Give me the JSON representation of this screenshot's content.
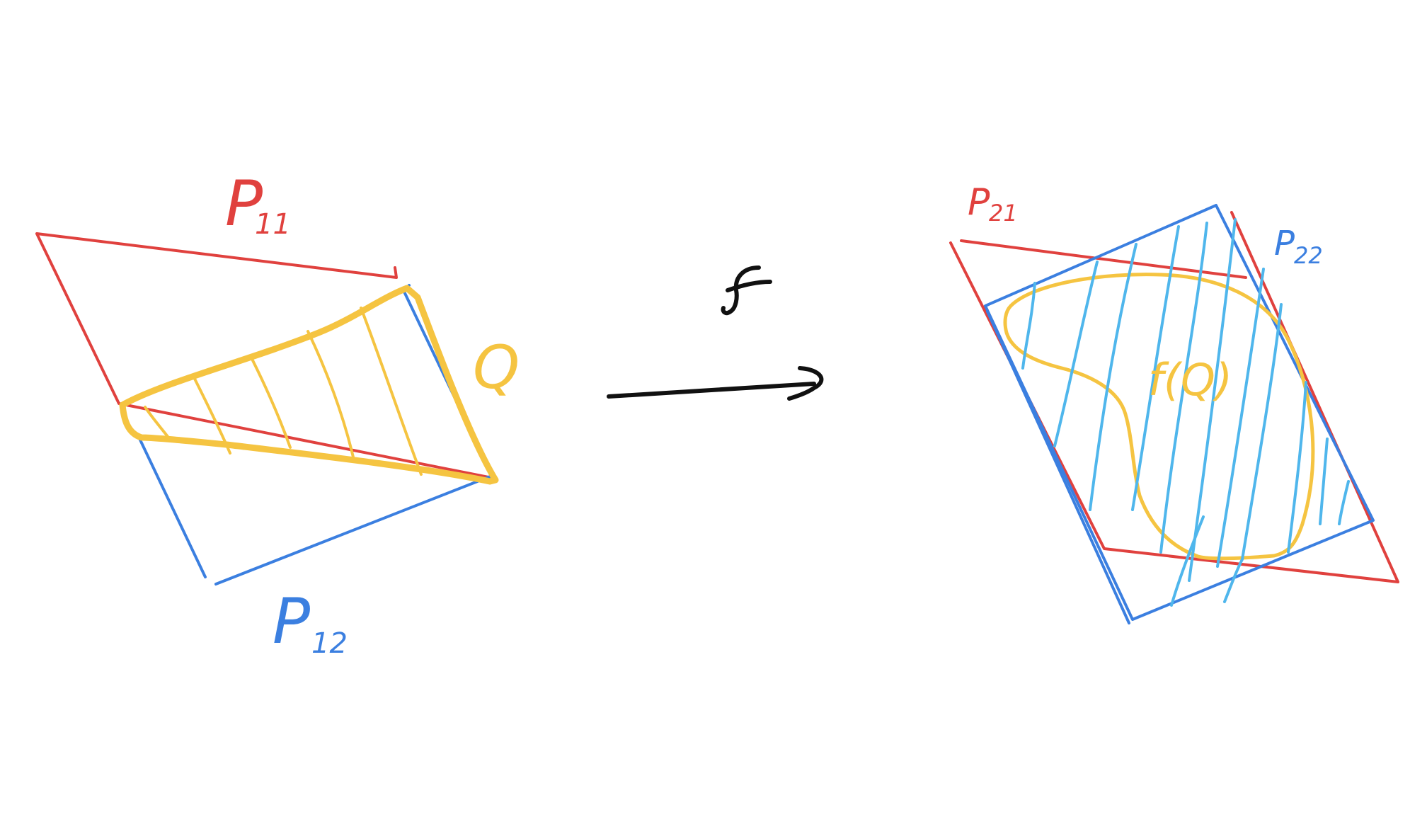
{
  "colors": {
    "background": "#ffffff",
    "red": "#e0413e",
    "blue": "#3b7fe0",
    "light_blue": "#4fb6ec",
    "yellow": "#f5c441",
    "black": "#111111"
  },
  "labels": {
    "p11": "P",
    "p11_sub": "11",
    "p12": "P",
    "p12_sub": "12",
    "q": "Q",
    "f": "f",
    "p21": "P",
    "p21_sub": "21",
    "p22": "P",
    "p22_sub": "22",
    "fq": "f(Q)"
  }
}
